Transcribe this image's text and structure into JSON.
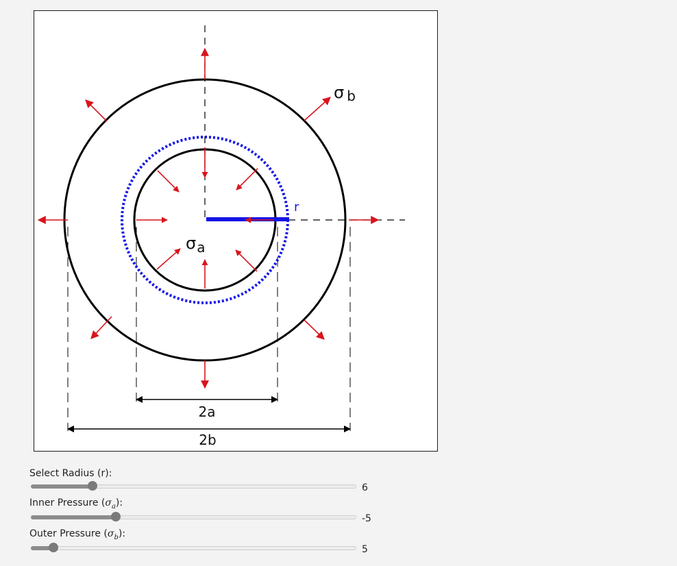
{
  "diagram": {
    "labels": {
      "sigma_outer": "σ",
      "sigma_outer_sub": "b",
      "sigma_inner": "σ",
      "sigma_inner_sub": "a",
      "radius": "r",
      "inner_diameter": "2a",
      "outer_diameter": "2b"
    },
    "colors": {
      "arrow": "#d9141c",
      "radius_circle": "#1414e6",
      "ring": "#000000"
    }
  },
  "controls": {
    "radius": {
      "label": "Select Radius (r):",
      "value": "6",
      "fraction": 0.19
    },
    "inner_pressure": {
      "label_prefix": "Inner Pressure (",
      "symbol": "σ",
      "sub": "a",
      "label_suffix": "):",
      "value": "-5",
      "fraction": 0.26
    },
    "outer_pressure": {
      "label_prefix": "Outer Pressure (",
      "symbol": "σ",
      "sub": "b",
      "label_suffix": "):",
      "value": "5",
      "fraction": 0.07
    }
  }
}
